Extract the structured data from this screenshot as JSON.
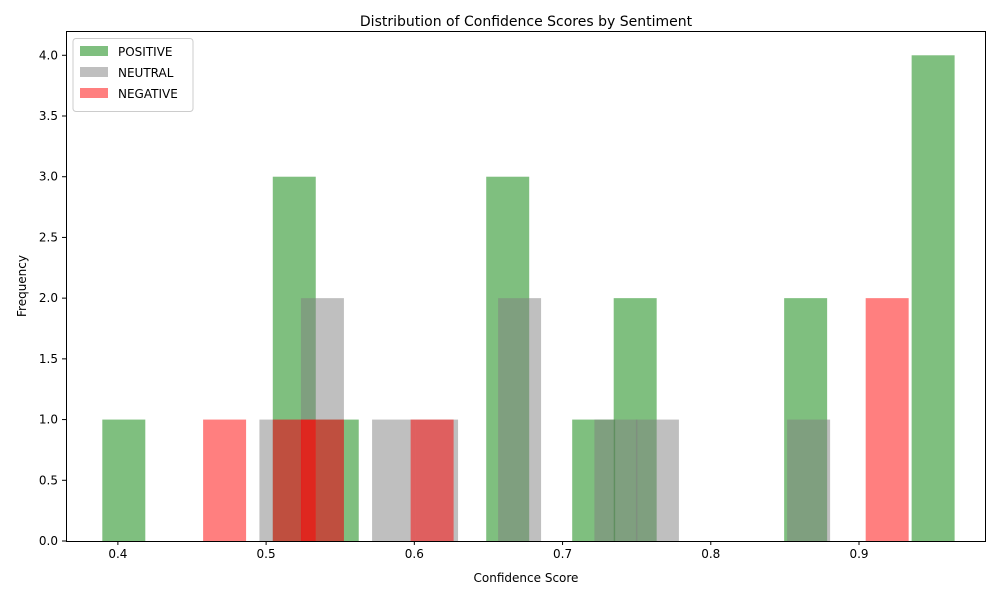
{
  "chart_data": {
    "type": "bar",
    "title": "Distribution of Confidence Scores by Sentiment",
    "xlabel": "Confidence Score",
    "ylabel": "Frequency",
    "xlim": [
      0.365,
      0.985
    ],
    "ylim": [
      0,
      4.2
    ],
    "xticks": [
      "0.4",
      "0.5",
      "0.6",
      "0.7",
      "0.8",
      "0.9"
    ],
    "yticks": [
      "0.0",
      "0.5",
      "1.0",
      "1.5",
      "2.0",
      "2.5",
      "3.0",
      "3.5",
      "4.0"
    ],
    "grid": false,
    "legend_position": "top-left",
    "bin_width": 0.029,
    "series": [
      {
        "name": "POSITIVE",
        "color": "#008000",
        "opacity": 0.5,
        "bins": [
          {
            "x": 0.404,
            "value": 1
          },
          {
            "x": 0.519,
            "value": 3
          },
          {
            "x": 0.548,
            "value": 1
          },
          {
            "x": 0.663,
            "value": 3
          },
          {
            "x": 0.721,
            "value": 1
          },
          {
            "x": 0.749,
            "value": 2
          },
          {
            "x": 0.864,
            "value": 2
          },
          {
            "x": 0.95,
            "value": 4
          }
        ]
      },
      {
        "name": "NEUTRAL",
        "color": "#808080",
        "opacity": 0.5,
        "bins": [
          {
            "x": 0.51,
            "value": 1
          },
          {
            "x": 0.538,
            "value": 2
          },
          {
            "x": 0.586,
            "value": 1
          },
          {
            "x": 0.615,
            "value": 1
          },
          {
            "x": 0.671,
            "value": 2
          },
          {
            "x": 0.736,
            "value": 1
          },
          {
            "x": 0.764,
            "value": 1
          },
          {
            "x": 0.866,
            "value": 1
          }
        ]
      },
      {
        "name": "NEGATIVE",
        "color": "#ff0000",
        "opacity": 0.5,
        "bins": [
          {
            "x": 0.472,
            "value": 1
          },
          {
            "x": 0.519,
            "value": 1
          },
          {
            "x": 0.538,
            "value": 1
          },
          {
            "x": 0.612,
            "value": 1
          },
          {
            "x": 0.919,
            "value": 2
          }
        ]
      }
    ]
  }
}
